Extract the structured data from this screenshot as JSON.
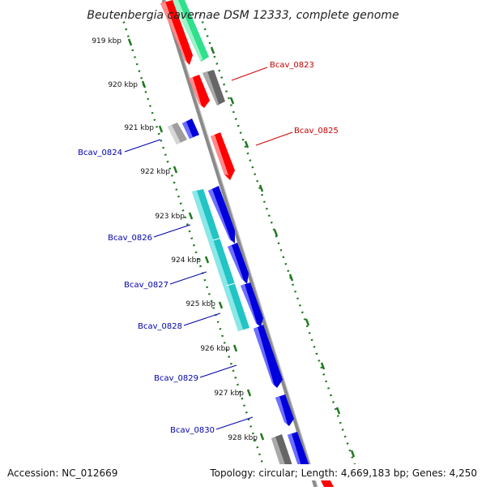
{
  "title": "Beutenbergia cavernae DSM 12333, complete genome",
  "accession": "Accession: NC_012669",
  "summary": "Topology: circular; Length: 4,669,183 bp; Genes: 4,250",
  "colors": {
    "backbone": "#8a8a8a",
    "ticks": "#1f7a1f",
    "label_red": "#cc0000",
    "label_blue": "#0000aa"
  },
  "kbp_ticks": [
    "919 kbp",
    "920 kbp",
    "921 kbp",
    "922 kbp",
    "923 kbp",
    "924 kbp",
    "925 kbp",
    "926 kbp",
    "927 kbp",
    "928 kbp"
  ],
  "gene_labels": [
    {
      "text": "Bcav_0823",
      "color": "#cc0000"
    },
    {
      "text": "Bcav_0825",
      "color": "#cc0000"
    },
    {
      "text": "Bcav_0824",
      "color": "#0000aa"
    },
    {
      "text": "Bcav_0826",
      "color": "#0000aa"
    },
    {
      "text": "Bcav_0827",
      "color": "#0000aa"
    },
    {
      "text": "Bcav_0828",
      "color": "#0000aa"
    },
    {
      "text": "Bcav_0829",
      "color": "#0000aa"
    },
    {
      "text": "Bcav_0830",
      "color": "#0000aa"
    }
  ]
}
